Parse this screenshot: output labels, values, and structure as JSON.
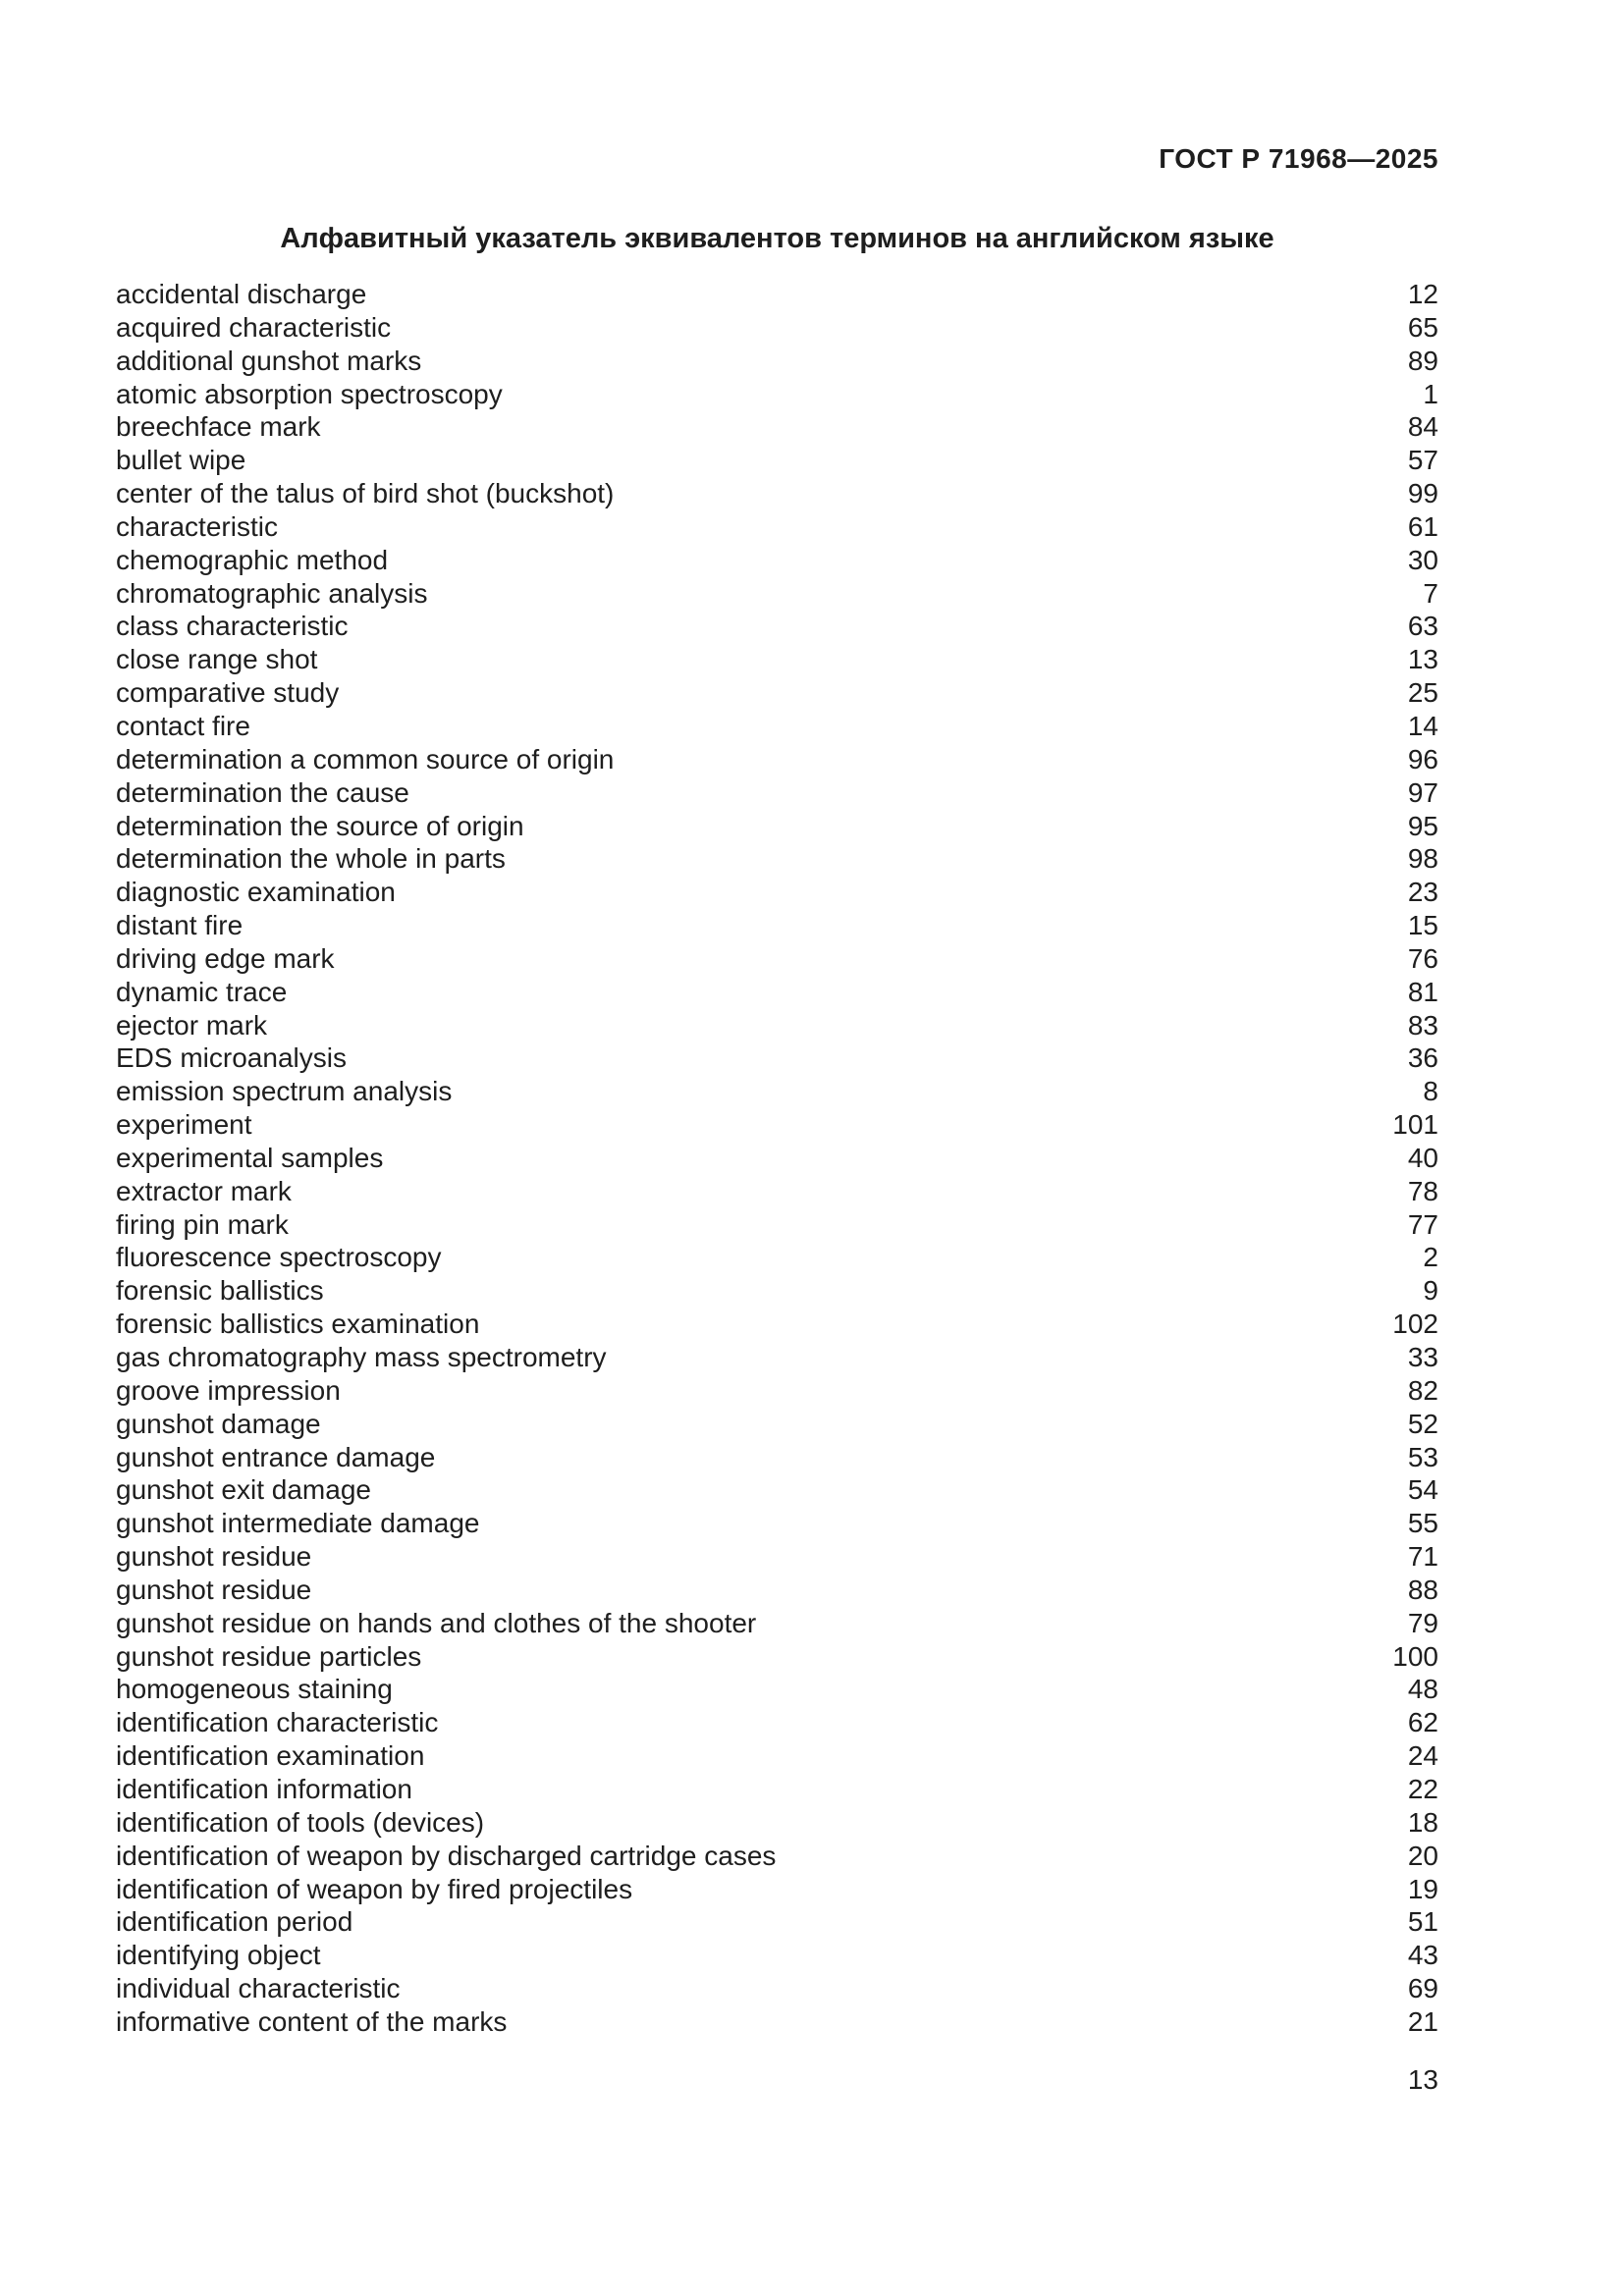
{
  "page": {
    "header_code": "ГОСТ Р 71968—2025",
    "title": "Алфавитный указатель эквивалентов терминов на английском языке",
    "page_number": "13"
  },
  "index": {
    "entries": [
      {
        "term": "accidental discharge",
        "ref": "12"
      },
      {
        "term": "acquired characteristic",
        "ref": "65"
      },
      {
        "term": "additional gunshot marks",
        "ref": "89"
      },
      {
        "term": "atomic absorption spectroscopy",
        "ref": "1"
      },
      {
        "term": "breechface mark",
        "ref": "84"
      },
      {
        "term": "bullet wipe",
        "ref": "57"
      },
      {
        "term": "center of the talus of bird shot (buckshot)",
        "ref": "99"
      },
      {
        "term": "characteristic",
        "ref": "61"
      },
      {
        "term": "chemographic method",
        "ref": "30"
      },
      {
        "term": "chromatographic analysis",
        "ref": "7"
      },
      {
        "term": "class characteristic",
        "ref": "63"
      },
      {
        "term": "close range shot",
        "ref": "13"
      },
      {
        "term": "comparative study",
        "ref": "25"
      },
      {
        "term": "contact fire",
        "ref": "14"
      },
      {
        "term": "determination a common source of origin",
        "ref": "96"
      },
      {
        "term": "determination the cause",
        "ref": "97"
      },
      {
        "term": "determination the source of origin",
        "ref": "95"
      },
      {
        "term": "determination the whole in parts",
        "ref": "98"
      },
      {
        "term": "diagnostic examination",
        "ref": "23"
      },
      {
        "term": "distant fire",
        "ref": "15"
      },
      {
        "term": "driving edge mark",
        "ref": "76"
      },
      {
        "term": "dynamic trace",
        "ref": "81"
      },
      {
        "term": "ejector mark",
        "ref": "83"
      },
      {
        "term": "EDS microanalysis",
        "ref": "36"
      },
      {
        "term": "emission spectrum analysis",
        "ref": "8"
      },
      {
        "term": "experiment",
        "ref": "101"
      },
      {
        "term": "experimental samples",
        "ref": "40"
      },
      {
        "term": "extractor mark",
        "ref": "78"
      },
      {
        "term": "firing pin mark",
        "ref": "77"
      },
      {
        "term": "fluorescence spectroscopy",
        "ref": "2"
      },
      {
        "term": "forensic ballistics",
        "ref": "9"
      },
      {
        "term": "forensic ballistics examination",
        "ref": "102"
      },
      {
        "term": "gas chromatography mass spectrometry",
        "ref": "33"
      },
      {
        "term": "groove impression",
        "ref": "82"
      },
      {
        "term": "gunshot damage",
        "ref": "52"
      },
      {
        "term": "gunshot entrance damage",
        "ref": "53"
      },
      {
        "term": "gunshot exit damage",
        "ref": "54"
      },
      {
        "term": "gunshot intermediate damage",
        "ref": "55"
      },
      {
        "term": "gunshot residue",
        "ref": "71"
      },
      {
        "term": "gunshot residue",
        "ref": "88"
      },
      {
        "term": "gunshot residue on hands and clothes of the shooter",
        "ref": "79"
      },
      {
        "term": "gunshot residue particles",
        "ref": "100"
      },
      {
        "term": "homogeneous staining",
        "ref": "48"
      },
      {
        "term": "identification characteristic",
        "ref": "62"
      },
      {
        "term": "identification examination",
        "ref": "24"
      },
      {
        "term": "identification information",
        "ref": "22"
      },
      {
        "term": "identification of tools (devices)",
        "ref": "18"
      },
      {
        "term": "identification of weapon by discharged cartridge cases",
        "ref": "20"
      },
      {
        "term": "identification of weapon by fired projectiles",
        "ref": "19"
      },
      {
        "term": "identification period",
        "ref": "51"
      },
      {
        "term": "identifying object",
        "ref": "43"
      },
      {
        "term": "individual characteristic",
        "ref": "69"
      },
      {
        "term": "informative content of the marks",
        "ref": "21"
      }
    ]
  }
}
